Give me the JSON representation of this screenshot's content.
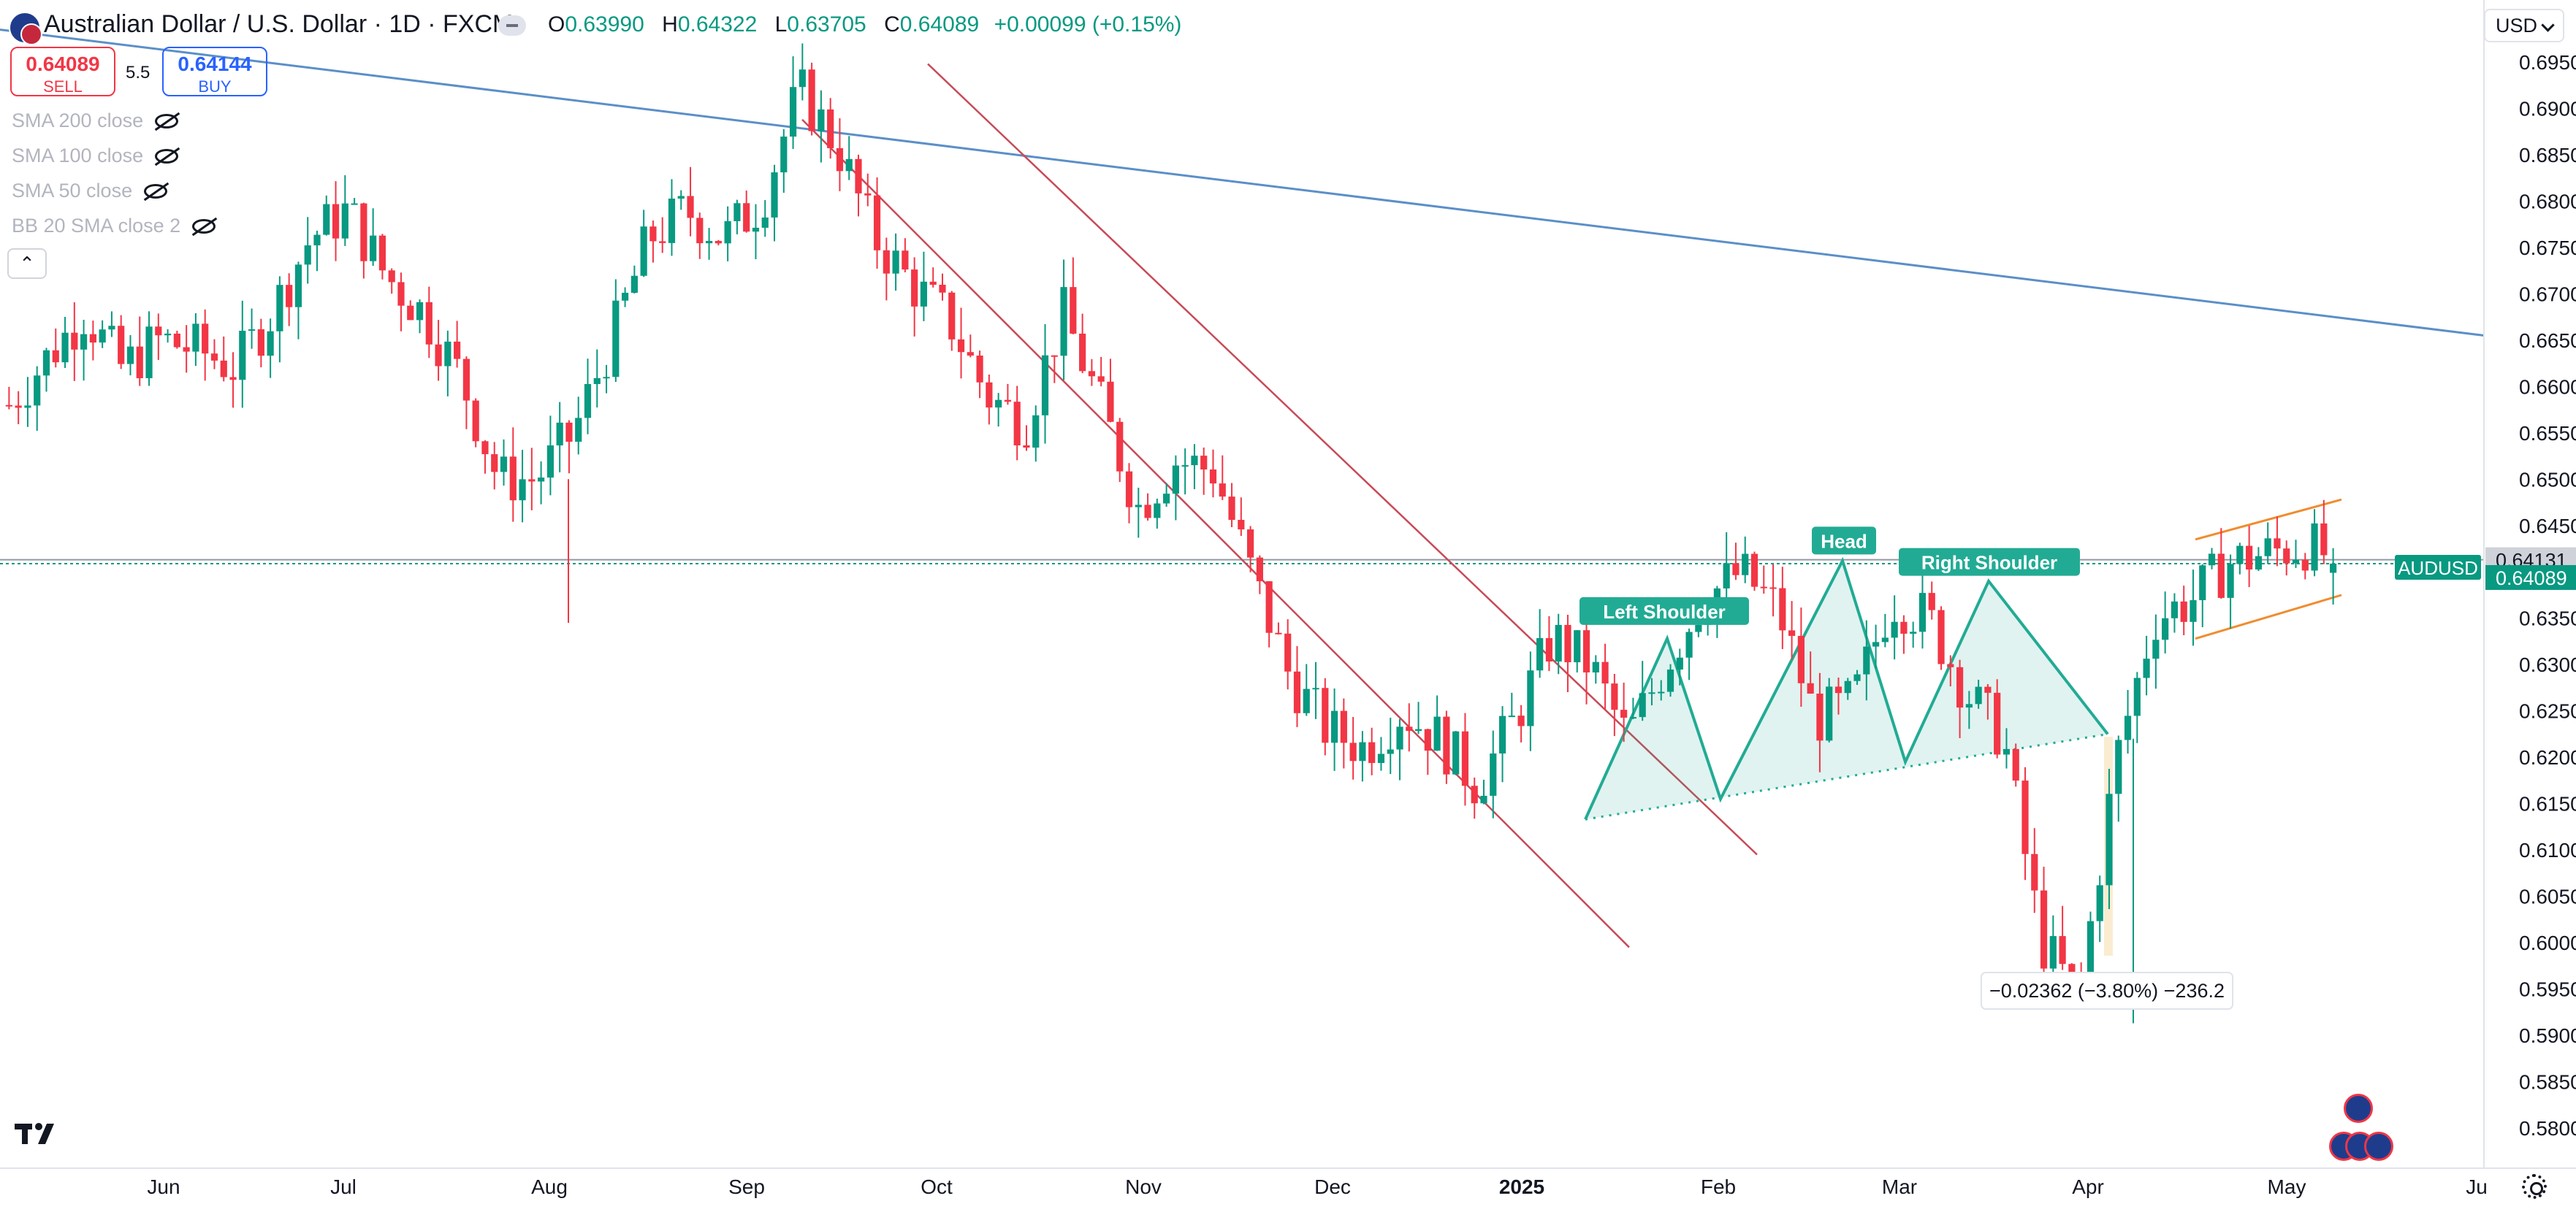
{
  "header": {
    "symbol_title": "Australian Dollar / U.S. Dollar · 1D · FXCM",
    "open_key": "O",
    "open": "0.63990",
    "high_key": "H",
    "high": "0.64322",
    "low_key": "L",
    "low": "0.63705",
    "close_key": "C",
    "close": "0.64089",
    "change": "+0.00099 (+0.15%)"
  },
  "trade": {
    "sell_price": "0.64089",
    "sell_label": "SELL",
    "spread": "5.5",
    "buy_price": "0.64144",
    "buy_label": "BUY"
  },
  "indicators": [
    "SMA 200 close",
    "SMA 100 close",
    "SMA 50 close",
    "BB 20 SMA close 2"
  ],
  "currency": "USD",
  "colors": {
    "up": "#089981",
    "down": "#f23645",
    "pattern": "#22ab94",
    "trend": "#5b8fc8",
    "channel": "#c84a57",
    "wedge": "#f08c2e"
  },
  "chart_data": {
    "type": "candlestick",
    "symbol": "AUDUSD",
    "timeframe": "1D",
    "x_axis_labels": [
      "Jun",
      "Jul",
      "Aug",
      "Sep",
      "Oct",
      "Nov",
      "Dec",
      "2025",
      "Feb",
      "Mar",
      "Apr",
      "May",
      "Ju"
    ],
    "y_axis_ticks": [
      "0.69500",
      "0.69000",
      "0.68500",
      "0.68000",
      "0.67500",
      "0.67000",
      "0.66500",
      "0.66000",
      "0.65500",
      "0.65000",
      "0.64500",
      "0.63500",
      "0.63000",
      "0.62500",
      "0.62000",
      "0.61500",
      "0.61000",
      "0.60500",
      "0.60000",
      "0.59500",
      "0.59000",
      "0.58500",
      "0.58000"
    ],
    "ylim": [
      0.5775,
      0.6975
    ],
    "current_price": "0.64089",
    "current_price_label": "AUDUSD",
    "high_marker": "0.64131",
    "approx_closes": [
      0.658,
      0.663,
      0.668,
      0.662,
      0.665,
      0.664,
      0.662,
      0.668,
      0.676,
      0.679,
      0.672,
      0.668,
      0.661,
      0.65,
      0.65,
      0.655,
      0.665,
      0.676,
      0.679,
      0.676,
      0.68,
      0.692,
      0.686,
      0.676,
      0.671,
      0.667,
      0.659,
      0.656,
      0.668,
      0.658,
      0.647,
      0.652,
      0.651,
      0.64,
      0.629,
      0.623,
      0.621,
      0.625,
      0.622,
      0.617,
      0.624,
      0.633,
      0.63,
      0.622,
      0.63,
      0.637,
      0.64,
      0.636,
      0.624,
      0.626,
      0.637,
      0.635,
      0.627,
      0.622,
      0.6,
      0.594,
      0.62,
      0.635,
      0.637,
      0.641,
      0.642,
      0.643,
      0.6409
    ],
    "patterns": [
      {
        "label": "Left Shoulder"
      },
      {
        "label": "Head"
      },
      {
        "label": "Right Shoulder"
      }
    ],
    "measure": "−0.02362 (−3.80%) −236.2"
  }
}
